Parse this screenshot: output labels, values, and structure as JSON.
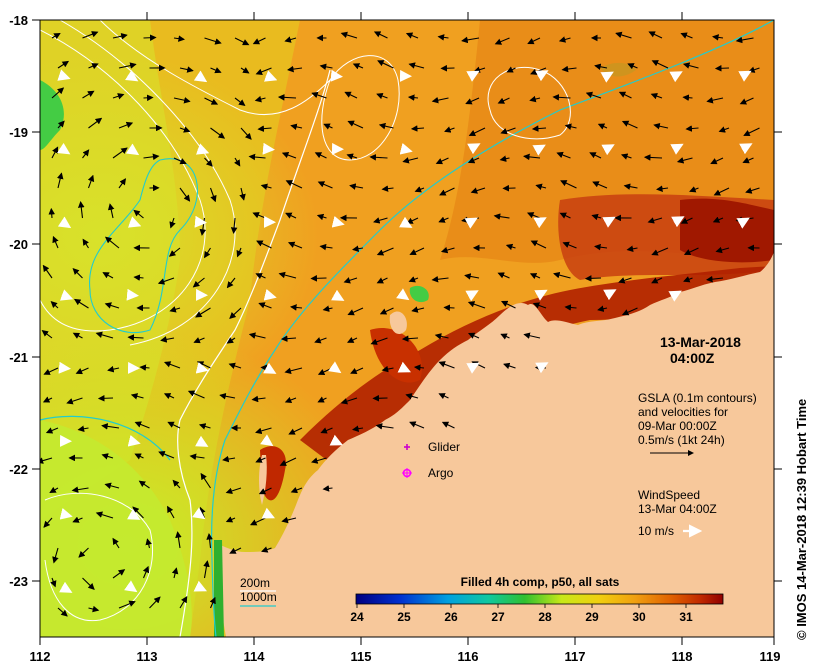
{
  "map": {
    "lon_ticks": [
      "112",
      "113",
      "114",
      "115",
      "116",
      "117",
      "118",
      "119"
    ],
    "lat_ticks": [
      "-18",
      "-19",
      "-20",
      "-21",
      "-22",
      "-23"
    ]
  },
  "timestamp": {
    "date": "13-Mar-2018",
    "time": "04:00Z"
  },
  "gsla_legend": {
    "line1": "GSLA (0.1m contours)",
    "line2": "and velocities for",
    "line3": "09-Mar 00:00Z",
    "line4": "0.5m/s (1kt 24h)"
  },
  "wind_legend": {
    "line1": "WindSpeed",
    "line2": "13-Mar 04:00Z",
    "line3": "10 m/s"
  },
  "platforms": {
    "glider_label": "Glider",
    "argo_label": "Argo",
    "glider_color": "#cc00cc",
    "argo_color": "#ff00ff"
  },
  "bathymetry": {
    "label_200": "200m",
    "label_1000": "1000m",
    "color_200": "#ffffff",
    "color_1000": "#22cccc"
  },
  "colorbar": {
    "title": "Filled 4h comp, p50, all sats",
    "ticks": [
      "24",
      "25",
      "26",
      "27",
      "28",
      "29",
      "30",
      "31"
    ]
  },
  "credit": "© IMOS 14-Mar-2018 12:39 Hobart Time",
  "colors": {
    "land": "#f7c89b",
    "sst_warm": "#f0a020",
    "sst_hot": "#b02000",
    "sst_cool": "#ccee22"
  }
}
